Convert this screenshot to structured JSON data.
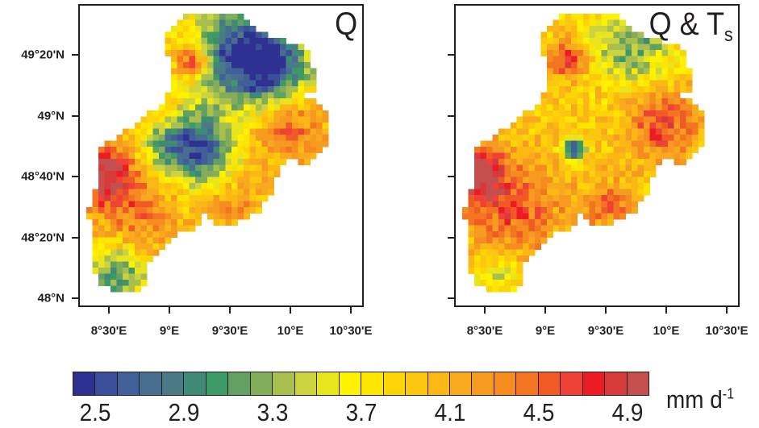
{
  "panels": [
    {
      "title": "Q",
      "subscript": ""
    },
    {
      "title": "Q & T",
      "subscript": "s"
    }
  ],
  "y_ticks": [
    "49°20'N",
    "49°N",
    "48°40'N",
    "48°20'N",
    "48°N"
  ],
  "x_ticks": [
    "8°30'E",
    "9°E",
    "9°30'E",
    "10°E",
    "10°30'E"
  ],
  "colorbar": {
    "labels": [
      "2.5",
      "2.9",
      "3.3",
      "3.7",
      "4.1",
      "4.5",
      "4.9"
    ],
    "units": "mm d",
    "units_sup": "-1",
    "boundaries": [
      2.5,
      2.6,
      2.7,
      2.8,
      2.9,
      3.0,
      3.1,
      3.2,
      3.3,
      3.4,
      3.5,
      3.6,
      3.7,
      3.8,
      3.9,
      4.0,
      4.1,
      4.2,
      4.3,
      4.4,
      4.5,
      4.6,
      4.7,
      4.8,
      4.9
    ],
    "colors": [
      "#2e3192",
      "#3a4f9a",
      "#41609a",
      "#476e90",
      "#4a7a86",
      "#3f8a76",
      "#3d9a66",
      "#62a163",
      "#82ad59",
      "#a8bf4f",
      "#cbd43f",
      "#e9e51c",
      "#fff200",
      "#ffe600",
      "#fdd406",
      "#fdc70f",
      "#fbb814",
      "#f9a91e",
      "#f79a20",
      "#f68b1f",
      "#f47521",
      "#f15a24",
      "#ef4136",
      "#ed1c24",
      "#d83a3a",
      "#c44f4f"
    ]
  }
}
